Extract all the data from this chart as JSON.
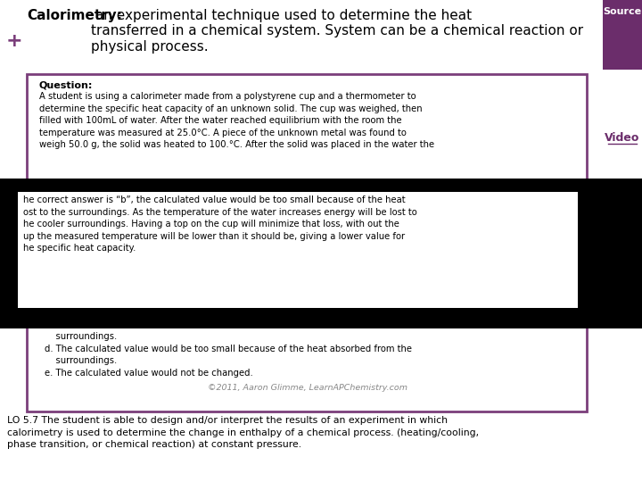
{
  "bg_color": "#ffffff",
  "purple_dark": "#6B2D6B",
  "purple_border": "#7B3F7B",
  "black": "#000000",
  "white": "#ffffff",
  "plus_color": "#7B3F7B",
  "gray_text": "#888888",
  "title_bold": "Calorimetry:",
  "title_rest": " an experimental technique used to determine the heat\ntransferred in a chemical system. System can be a chemical reaction or\nphysical process.",
  "source_text": "Source",
  "video_text": "Video",
  "question_label": "Question:",
  "question_body": "A student is using a calorimeter made from a polystyrene cup and a thermometer to\ndetermine the specific heat capacity of an unknown solid. The cup was weighed, then\nfilled with 100mL of water. After the water reached equilibrium with the room the\ntemperature was measured at 25.0°C. A piece of the unknown metal was found to\nweigh 50.0 g, the solid was heated to 100.°C. After the solid was placed in the water the",
  "answer_text": "he correct answer is “b”, the calculated value would be too small because of the heat\nost to the surroundings. As the temperature of the water increases energy will be lost to\nhe cooler surroundings. Having a top on the cup will minimize that loss, with out the\nup the measured temperature will be lower than it should be, giving a lower value for\nhe specific heat capacity.",
  "bottom_options": "    surroundings.\nd. The calculated value would be too small because of the heat absorbed from the\n    surroundings.\ne. The calculated value would not be changed.",
  "copyright_text": "©2011, Aaron Glimme, LearnAPChemistry.com",
  "lo_text": "LO 5.7 The student is able to design and/or interpret the results of an experiment in which\ncalorimetry is used to determine the change in enthalpy of a chemical process. (heating/cooling,\nphase transition, or chemical reaction) at constant pressure."
}
